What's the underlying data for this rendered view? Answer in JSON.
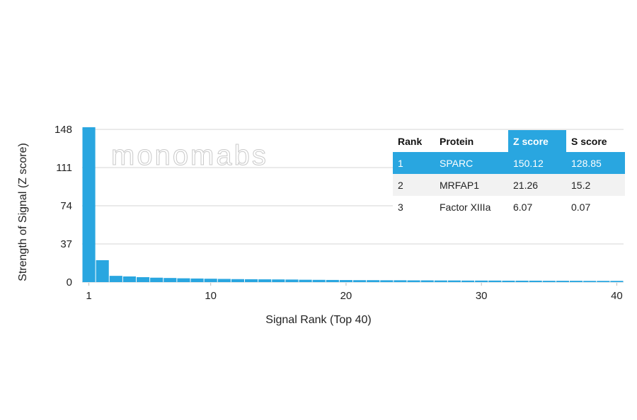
{
  "watermark": "monomabs",
  "chart_data": {
    "type": "bar",
    "xlabel": "Signal Rank (Top 40)",
    "ylabel": "Strength of Signal (Z score)",
    "x": [
      1,
      2,
      3,
      4,
      5,
      6,
      7,
      8,
      9,
      10,
      11,
      12,
      13,
      14,
      15,
      16,
      17,
      18,
      19,
      20,
      21,
      22,
      23,
      24,
      25,
      26,
      27,
      28,
      29,
      30,
      31,
      32,
      33,
      34,
      35,
      36,
      37,
      38,
      39,
      40
    ],
    "values": [
      150.12,
      21.26,
      6.07,
      5.5,
      4.8,
      4.3,
      4.0,
      3.7,
      3.5,
      3.3,
      3.1,
      2.9,
      2.8,
      2.7,
      2.6,
      2.5,
      2.3,
      2.2,
      2.1,
      2.0,
      1.9,
      1.9,
      1.8,
      1.8,
      1.7,
      1.7,
      1.6,
      1.6,
      1.5,
      1.5,
      1.5,
      1.4,
      1.4,
      1.4,
      1.3,
      1.3,
      1.3,
      1.2,
      1.2,
      1.2
    ],
    "yticks": [
      0,
      37,
      74,
      111,
      148
    ],
    "xticks": [
      1,
      10,
      20,
      30,
      40
    ],
    "ylim": [
      0,
      148
    ],
    "bar_color": "#29a6e0",
    "grid": true
  },
  "table": {
    "headers": {
      "rank": "Rank",
      "protein": "Protein",
      "z": "Z score",
      "s": "S score"
    },
    "rows": [
      {
        "rank": "1",
        "protein": "SPARC",
        "z": "150.12",
        "s": "128.85"
      },
      {
        "rank": "2",
        "protein": "MRFAP1",
        "z": "21.26",
        "s": "15.2"
      },
      {
        "rank": "3",
        "protein": "Factor XIIIa",
        "z": "6.07",
        "s": "0.07"
      }
    ],
    "highlight_color": "#29a6e0"
  }
}
